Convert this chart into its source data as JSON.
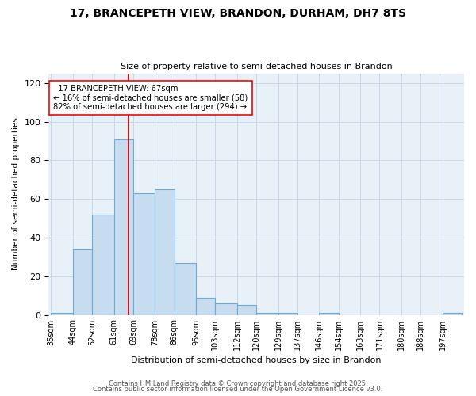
{
  "title": "17, BRANCEPETH VIEW, BRANDON, DURHAM, DH7 8TS",
  "subtitle": "Size of property relative to semi-detached houses in Brandon",
  "xlabel": "Distribution of semi-detached houses by size in Brandon",
  "ylabel": "Number of semi-detached properties",
  "property_size": 67,
  "smaller_pct": 16,
  "smaller_count": 58,
  "larger_pct": 82,
  "larger_count": 294,
  "bin_edges": [
    35,
    44,
    52,
    61,
    69,
    78,
    86,
    95,
    103,
    112,
    120,
    129,
    137,
    146,
    154,
    163,
    171,
    180,
    188,
    197,
    205
  ],
  "bin_counts": [
    1,
    34,
    52,
    91,
    63,
    65,
    27,
    9,
    6,
    5,
    1,
    1,
    0,
    1,
    0,
    0,
    0,
    0,
    0,
    1
  ],
  "bar_facecolor": "#c8dcf0",
  "bar_edgecolor": "#6aaed6",
  "bar_linewidth": 0.8,
  "vline_color": "#cc0000",
  "vline_x": 67,
  "grid_color": "#c8d8e8",
  "bg_color": "#e8f0f8",
  "ylim": [
    0,
    125
  ],
  "yticks": [
    0,
    20,
    40,
    60,
    80,
    100,
    120
  ],
  "footer1": "Contains HM Land Registry data © Crown copyright and database right 2025.",
  "footer2": "Contains public sector information licensed under the Open Government Licence v3.0."
}
